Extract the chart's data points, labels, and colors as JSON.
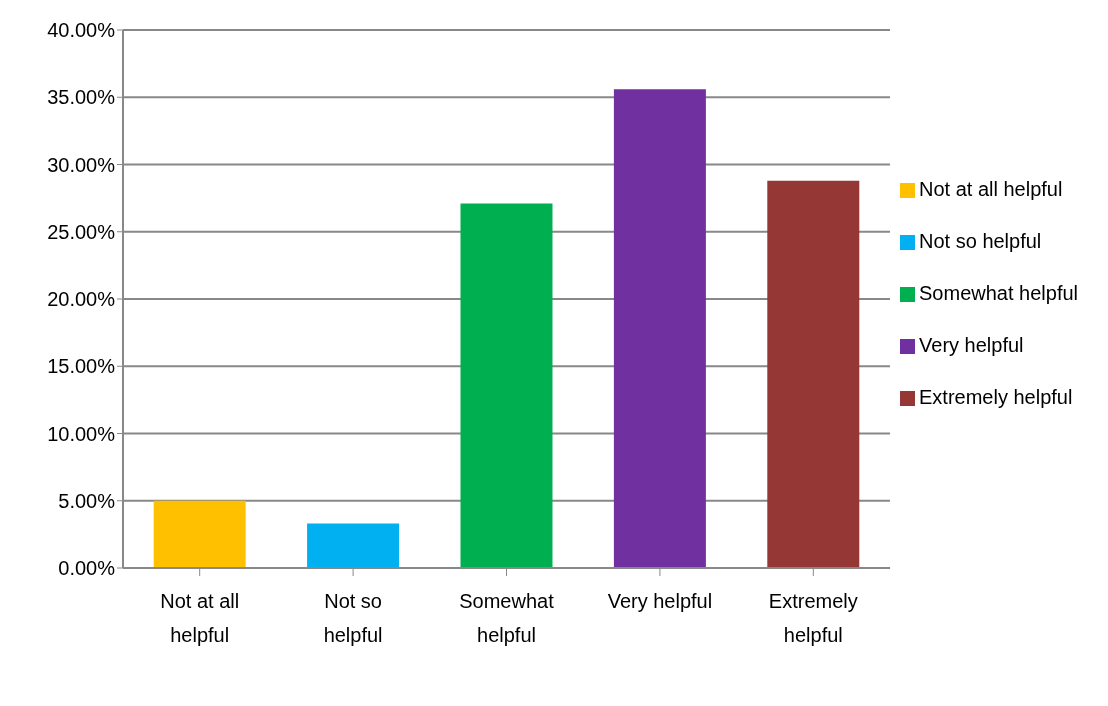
{
  "chart_data": {
    "type": "bar",
    "stacked": true,
    "categories": [
      "Not at all helpful",
      "Not so helpful",
      "Somewhat helpful",
      "Very helpful",
      "Extremely helpful"
    ],
    "series": [
      {
        "name": "Not at all helpful",
        "color": "#ffc000",
        "values": [
          5.0,
          null,
          null,
          null,
          null
        ]
      },
      {
        "name": "Not so helpful",
        "color": "#00b0f0",
        "values": [
          null,
          3.3,
          null,
          null,
          null
        ]
      },
      {
        "name": "Somewhat helpful",
        "color": "#00b050",
        "values": [
          null,
          null,
          27.1,
          null,
          null
        ]
      },
      {
        "name": "Very helpful",
        "color": "#7030a0",
        "values": [
          null,
          null,
          null,
          35.6,
          null
        ]
      },
      {
        "name": "Extremely helpful",
        "color": "#953735",
        "values": [
          null,
          null,
          null,
          null,
          28.8
        ]
      }
    ],
    "ylim": [
      0,
      40
    ],
    "yticks": [
      {
        "value": 0,
        "label": "0.00%"
      },
      {
        "value": 5,
        "label": "5.00%"
      },
      {
        "value": 10,
        "label": "10.00%"
      },
      {
        "value": 15,
        "label": "15.00%"
      },
      {
        "value": 20,
        "label": "20.00%"
      },
      {
        "value": 25,
        "label": "25.00%"
      },
      {
        "value": 30,
        "label": "30.00%"
      },
      {
        "value": 35,
        "label": "35.00%"
      },
      {
        "value": 40,
        "label": "40.00%"
      }
    ],
    "grid": "y",
    "legend": "right"
  }
}
